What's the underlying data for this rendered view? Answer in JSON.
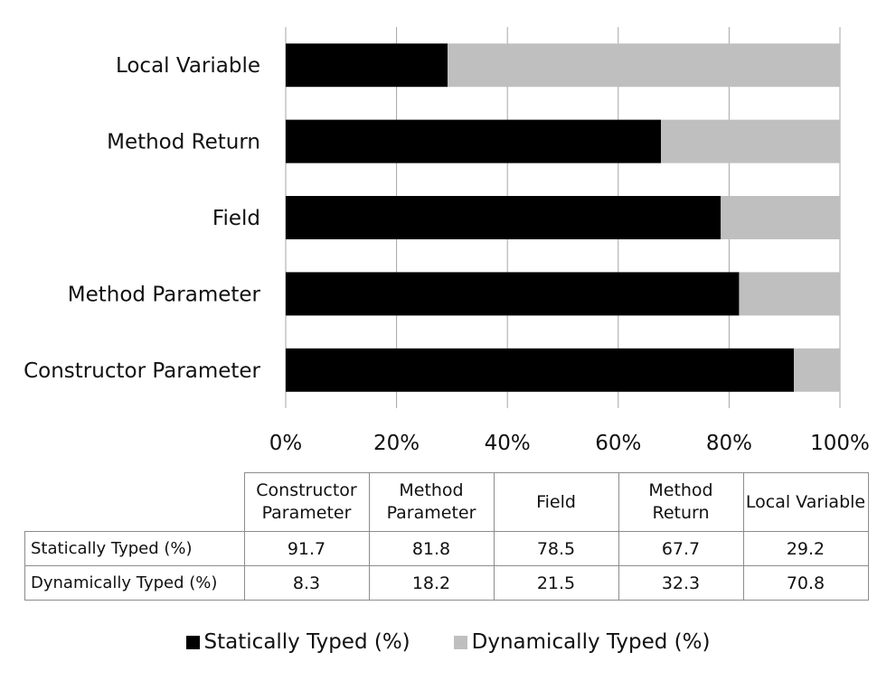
{
  "chart_data": {
    "type": "bar",
    "orientation": "horizontal",
    "stacked": "percent",
    "categories": [
      "Local Variable",
      "Method Return",
      "Field",
      "Method Parameter",
      "Constructor Parameter"
    ],
    "series": [
      {
        "name": "Statically Typed (%)",
        "color": "#000000",
        "values": [
          29.2,
          67.7,
          78.5,
          81.8,
          91.7
        ]
      },
      {
        "name": "Dynamically Typed (%)",
        "color": "#bfbfbf",
        "values": [
          70.8,
          32.3,
          21.5,
          18.2,
          8.3
        ]
      }
    ],
    "x_ticks": [
      "0%",
      "20%",
      "40%",
      "60%",
      "80%",
      "100%"
    ],
    "xlim": [
      0,
      100
    ],
    "grid": "vertical",
    "legend_position": "bottom",
    "table": {
      "columns": [
        "Constructor Parameter",
        "Method Parameter",
        "Field",
        "Method Return",
        "Local Variable"
      ],
      "rows": [
        {
          "label": "Statically Typed (%)",
          "values": [
            "91.7",
            "81.8",
            "78.5",
            "67.7",
            "29.2"
          ]
        },
        {
          "label": "Dynamically Typed (%)",
          "values": [
            "8.3",
            "18.2",
            "21.5",
            "32.3",
            "70.8"
          ]
        }
      ]
    }
  }
}
